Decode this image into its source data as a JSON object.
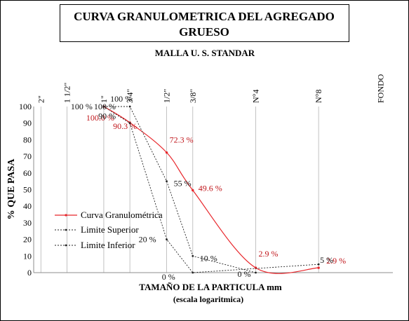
{
  "chart_data": {
    "type": "line",
    "title": "CURVA GRANULOMETRICA DEL AGREGADO GRUESO",
    "title_lines": [
      "CURVA GRANULOMETRICA DEL AGREGADO",
      "GRUESO"
    ],
    "subtitle": "MALLA U. S. STANDAR",
    "ylabel": "% QUE PASA",
    "xlabel": "TAMAÑO DE LA PARTICULA mm",
    "xlabel_sub": "(escala logaritmica)",
    "x_scale": "log",
    "ylim": [
      0,
      100
    ],
    "y_ticks": [
      "0",
      "10",
      "20",
      "30",
      "40",
      "50",
      "60",
      "70",
      "80",
      "90",
      "100"
    ],
    "top_axis_labels": [
      {
        "label": "2\"",
        "size_mm": 50.8
      },
      {
        "label": "1 1/2\"",
        "size_mm": 38.1
      },
      {
        "label": "1\"",
        "size_mm": 25.4
      },
      {
        "label": "3/4\"",
        "size_mm": 19.05
      },
      {
        "label": "1/2\"",
        "size_mm": 12.7
      },
      {
        "label": "3/8\"",
        "size_mm": 9.525
      },
      {
        "label": "N°4",
        "size_mm": 4.76
      },
      {
        "label": "N°8",
        "size_mm": 2.38
      },
      {
        "label": "FONDO",
        "size_mm": 1.2
      }
    ],
    "series": [
      {
        "name": "Curva Granulométrica",
        "color": "#e8262b",
        "x": [
          25.4,
          19.05,
          12.7,
          9.525,
          4.76,
          2.38
        ],
        "y": [
          100.0,
          90.3,
          72.3,
          49.6,
          2.9,
          2.9
        ],
        "labels": [
          "100.0 %",
          "90.3 %",
          "72.3 %",
          "49.6 %",
          "2.9 %",
          "2.9 %"
        ]
      },
      {
        "name": "Limite Superior",
        "color": "#222222",
        "x": [
          25.4,
          19.05,
          12.7,
          9.525,
          4.76
        ],
        "y": [
          100,
          100,
          55,
          10,
          0
        ],
        "labels": [
          "100 %",
          "100 %",
          "55 %",
          "10 %",
          "0 %"
        ]
      },
      {
        "name": "Limite Inferior",
        "color": "#222222",
        "x": [
          25.4,
          19.05,
          12.7,
          9.525,
          2.38
        ],
        "y": [
          100,
          90,
          20,
          0,
          5
        ],
        "labels": [
          "100 %",
          "90 %",
          "20 %",
          "0 %",
          "5 %"
        ]
      }
    ],
    "grid": "vertical lines at sieve sizes",
    "legend_position": "center-left"
  }
}
